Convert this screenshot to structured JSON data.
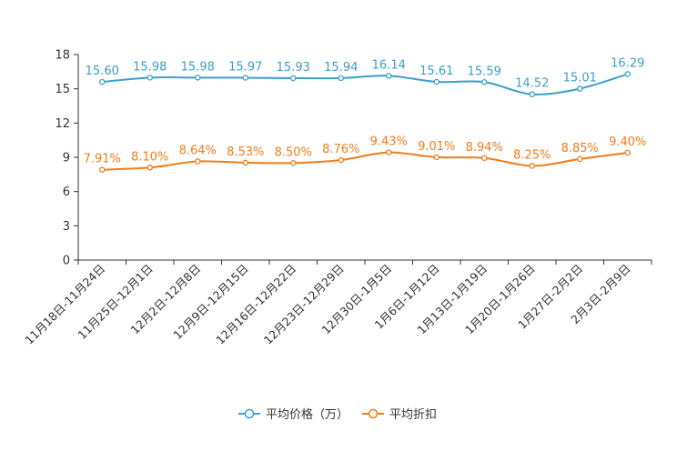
{
  "chart_data": {
    "type": "line",
    "categories": [
      "11月18日-11月24日",
      "11月25日-12月1日",
      "12月2日-12月8日",
      "12月9日-12月15日",
      "12月16日-12月22日",
      "12月23日-12月29日",
      "12月30日-1月5日",
      "1月6日-1月12日",
      "1月13日-1月19日",
      "1月20日-1月26日",
      "1月27日-2月2日",
      "2月3日-2月9日"
    ],
    "ylim": [
      0,
      18
    ],
    "yticks": [
      0,
      3,
      6,
      9,
      12,
      15,
      18
    ],
    "series": [
      {
        "name": "平均价格（万）",
        "color": "#3a9fcc",
        "values": [
          15.6,
          15.98,
          15.98,
          15.97,
          15.93,
          15.94,
          16.14,
          15.61,
          15.59,
          14.52,
          15.01,
          16.29
        ],
        "labels": [
          "15.60",
          "15.98",
          "15.98",
          "15.97",
          "15.93",
          "15.94",
          "16.14",
          "15.61",
          "15.59",
          "14.52",
          "15.01",
          "16.29"
        ]
      },
      {
        "name": "平均折扣",
        "color": "#f07d1a",
        "values": [
          7.91,
          8.1,
          8.64,
          8.53,
          8.5,
          8.76,
          9.43,
          9.01,
          8.94,
          8.25,
          8.85,
          9.4
        ],
        "labels": [
          "7.91%",
          "8.10%",
          "8.64%",
          "8.53%",
          "8.50%",
          "8.76%",
          "9.43%",
          "9.01%",
          "8.94%",
          "8.25%",
          "8.85%",
          "9.40%"
        ]
      }
    ],
    "grid": false,
    "legend": "bottom-center"
  }
}
